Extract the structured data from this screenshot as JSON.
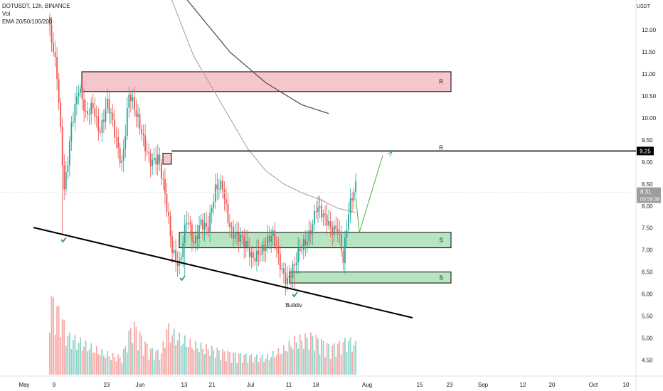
{
  "legend": {
    "symbol_line": "DOTUSDT, 12h, BINANCE",
    "vol": "Vol",
    "ema": "EMA 20/50/100/200"
  },
  "axis_unit": "USDT",
  "price_labels": {
    "level": "9.25",
    "current": "8.31",
    "countdown": "09:59:39"
  },
  "zone_labels": {
    "resistance": "R",
    "support": "S"
  },
  "annotation": "Bulldiv",
  "colors": {
    "bull": "#26a69a",
    "bear": "#ef5350",
    "resistance_fill": "#f5c6cb",
    "support_fill": "#b9e4c2",
    "check": "#2e9e4f",
    "path": "#4caf50",
    "line": "#000000"
  },
  "chart_data": {
    "type": "candlestick",
    "symbol": "DOTUSDT",
    "interval": "12h",
    "exchange": "BINANCE",
    "y_range": [
      4.2,
      12.6
    ],
    "y_ticks": [
      4.5,
      5.0,
      5.5,
      6.0,
      6.5,
      7.0,
      7.5,
      8.0,
      8.5,
      9.0,
      9.5,
      10.0,
      10.5,
      11.0,
      11.5,
      12.0
    ],
    "x_ticks": [
      "May",
      "9",
      "23",
      "Jun",
      "13",
      "21",
      "Jul",
      "11",
      "18",
      "Aug",
      "15",
      "23",
      "Sep",
      "12",
      "20",
      "Oct",
      "10"
    ],
    "close_anchors": [
      [
        0,
        12.0
      ],
      [
        4,
        10.8
      ],
      [
        8,
        8.4
      ],
      [
        12,
        10.0
      ],
      [
        16,
        10.6
      ],
      [
        20,
        9.9
      ],
      [
        24,
        10.4
      ],
      [
        28,
        9.8
      ],
      [
        32,
        10.2
      ],
      [
        36,
        9.6
      ],
      [
        40,
        9.1
      ],
      [
        44,
        10.6
      ],
      [
        48,
        9.9
      ],
      [
        52,
        9.5
      ],
      [
        56,
        9.2
      ],
      [
        60,
        9.05
      ],
      [
        64,
        8.1
      ],
      [
        68,
        7.1
      ],
      [
        72,
        6.8
      ],
      [
        76,
        7.6
      ],
      [
        80,
        7.0
      ],
      [
        84,
        7.8
      ],
      [
        88,
        7.6
      ],
      [
        92,
        8.2
      ],
      [
        96,
        8.4
      ],
      [
        100,
        7.7
      ],
      [
        104,
        7.3
      ],
      [
        108,
        7.0
      ],
      [
        112,
        6.9
      ],
      [
        116,
        7.1
      ],
      [
        120,
        7.0
      ],
      [
        124,
        7.2
      ],
      [
        128,
        6.8
      ],
      [
        132,
        6.4
      ],
      [
        136,
        6.5
      ],
      [
        140,
        7.0
      ],
      [
        144,
        7.5
      ],
      [
        148,
        8.0
      ],
      [
        152,
        7.6
      ],
      [
        156,
        7.5
      ],
      [
        160,
        7.7
      ],
      [
        163,
        6.8
      ],
      [
        166,
        7.7
      ],
      [
        170,
        8.4
      ]
    ],
    "volume_anchors": [
      [
        0,
        0.9
      ],
      [
        6,
        0.7
      ],
      [
        10,
        0.45
      ],
      [
        20,
        0.35
      ],
      [
        30,
        0.25
      ],
      [
        40,
        0.2
      ],
      [
        46,
        0.6
      ],
      [
        55,
        0.3
      ],
      [
        62,
        0.25
      ],
      [
        65,
        0.55
      ],
      [
        70,
        0.45
      ],
      [
        80,
        0.35
      ],
      [
        90,
        0.3
      ],
      [
        100,
        0.25
      ],
      [
        110,
        0.22
      ],
      [
        120,
        0.2
      ],
      [
        130,
        0.3
      ],
      [
        136,
        0.4
      ],
      [
        146,
        0.45
      ],
      [
        156,
        0.32
      ],
      [
        166,
        0.4
      ],
      [
        170,
        0.35
      ]
    ],
    "levels": {
      "horizontal_line": 9.25,
      "resistance_zone": [
        10.6,
        11.05
      ],
      "support_zone_upper": [
        7.05,
        7.4
      ],
      "support_zone_lower": [
        6.25,
        6.5
      ]
    },
    "ema_slow": [
      [
        66,
        13.2
      ],
      [
        80,
        12.5
      ],
      [
        100,
        11.5
      ],
      [
        120,
        10.8
      ],
      [
        140,
        10.3
      ],
      [
        155,
        10.1
      ]
    ],
    "ema_fast": [
      [
        60,
        13.5
      ],
      [
        80,
        11.4
      ],
      [
        100,
        10.0
      ],
      [
        110,
        9.3
      ],
      [
        120,
        8.8
      ],
      [
        130,
        8.5
      ],
      [
        140,
        8.3
      ],
      [
        150,
        8.15
      ],
      [
        160,
        7.95
      ],
      [
        170,
        7.85
      ]
    ],
    "projection": [
      [
        170,
        8.2
      ],
      [
        172,
        7.4
      ],
      [
        185,
        9.15
      ]
    ]
  }
}
